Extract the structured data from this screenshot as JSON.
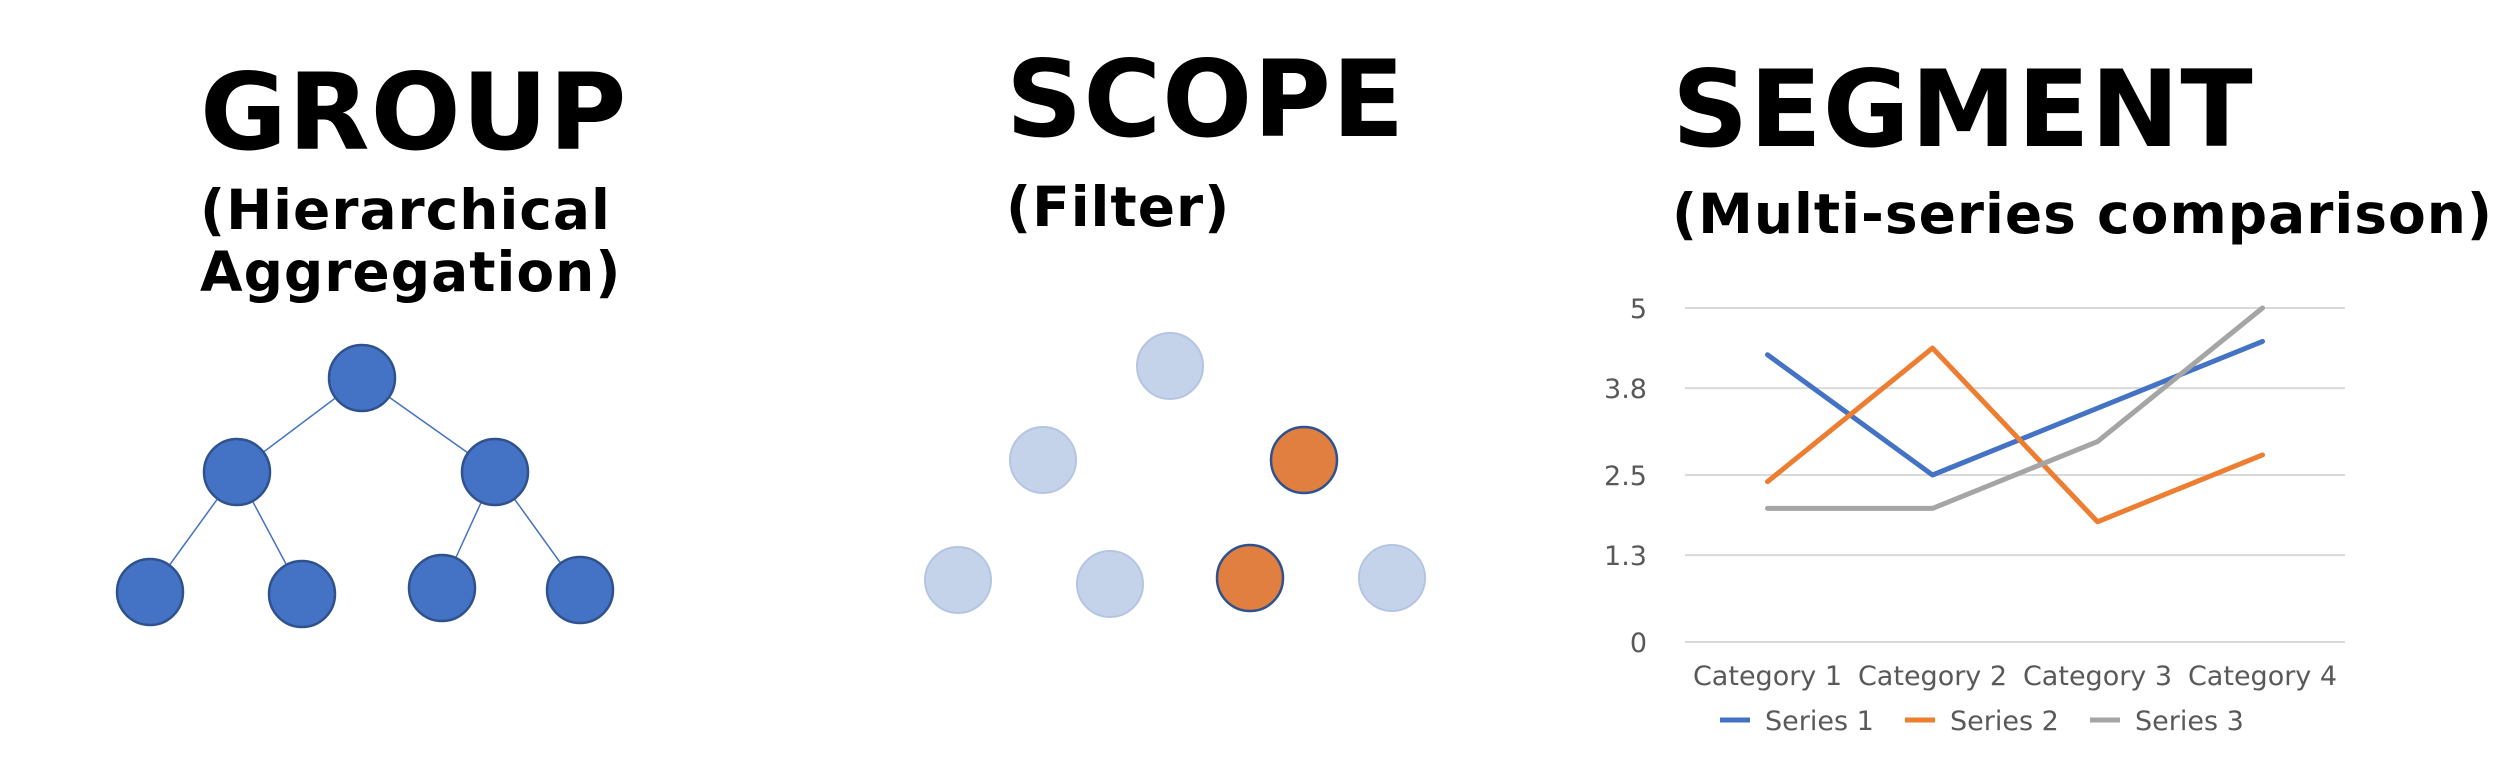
{
  "group": {
    "title": "GROUP",
    "subtitle_line1": "(Hierarchical",
    "subtitle_line2": "Aggregation)",
    "node_color": "#4472C4"
  },
  "scope": {
    "title": "SCOPE",
    "subtitle": "(Filter)",
    "dim_color": "#C5D3EA",
    "highlight_color": "#E07F3F"
  },
  "segment": {
    "title": "SEGMENT",
    "subtitle": "(Multi-series comparison)"
  },
  "chart_data": {
    "type": "line",
    "categories": [
      "Category 1",
      "Category 2",
      "Category 3",
      "Category 4"
    ],
    "series": [
      {
        "name": "Series 1",
        "values": [
          4.3,
          2.5,
          3.5,
          4.5
        ],
        "color": "#4472C4"
      },
      {
        "name": "Series 2",
        "values": [
          2.4,
          4.4,
          1.8,
          2.8
        ],
        "color": "#ED7D31"
      },
      {
        "name": "Series 3",
        "values": [
          2,
          2,
          3,
          5
        ],
        "color": "#A5A5A5"
      }
    ],
    "yticks": [
      "0",
      "1.3",
      "2.5",
      "3.8",
      "5"
    ],
    "ylim": [
      0,
      5
    ],
    "grid": true,
    "legend_position": "bottom"
  }
}
